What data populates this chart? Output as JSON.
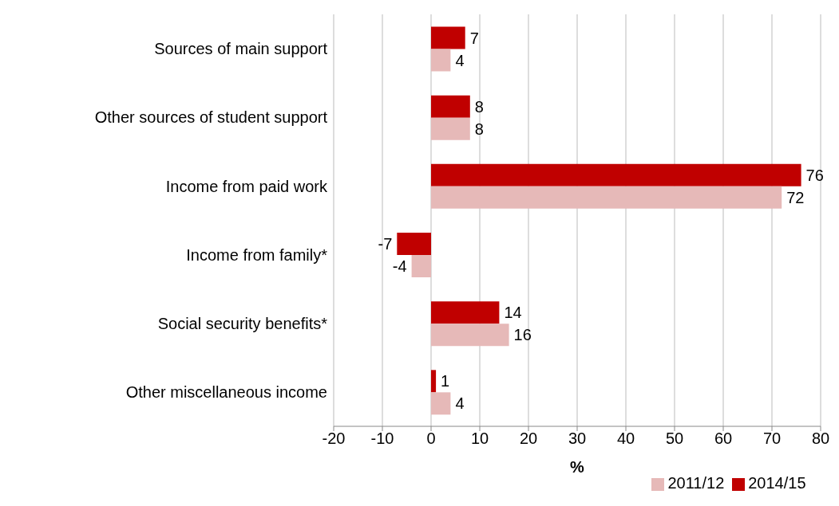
{
  "chart_data": {
    "type": "bar",
    "orientation": "horizontal",
    "xlabel": "%",
    "categories": [
      "Sources of main support",
      "Other sources of student support",
      "Income from paid work",
      "Income from family*",
      "Social security benefits*",
      "Other miscellaneous income"
    ],
    "series": [
      {
        "name": "2014/15",
        "color": "#c00000",
        "values": [
          7,
          8,
          76,
          -7,
          14,
          1
        ]
      },
      {
        "name": "2011/12",
        "color": "#e6b9b8",
        "values": [
          4,
          8,
          72,
          -4,
          16,
          4
        ]
      }
    ],
    "xlim": [
      -20,
      80
    ],
    "xticks": [
      -20,
      -10,
      0,
      10,
      20,
      30,
      40,
      50,
      60,
      70,
      80
    ],
    "grid": "x",
    "legend": "bottom",
    "data_labels": true
  }
}
